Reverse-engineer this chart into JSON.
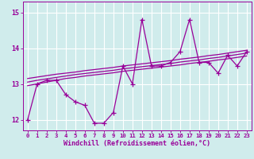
{
  "xlabel": "Windchill (Refroidissement éolien,°C)",
  "xlim": [
    -0.5,
    23.5
  ],
  "ylim": [
    11.7,
    15.3
  ],
  "yticks": [
    12,
    13,
    14,
    15
  ],
  "xticks": [
    0,
    1,
    2,
    3,
    4,
    5,
    6,
    7,
    8,
    9,
    10,
    11,
    12,
    13,
    14,
    15,
    16,
    17,
    18,
    19,
    20,
    21,
    22,
    23
  ],
  "bg_color": "#d0ecec",
  "grid_color": "#b0d8d8",
  "line_color": "#990099",
  "main_data": [
    12.0,
    13.0,
    13.1,
    13.1,
    12.7,
    12.5,
    12.4,
    11.9,
    11.9,
    12.2,
    13.5,
    13.0,
    14.8,
    13.5,
    13.5,
    13.6,
    13.9,
    14.8,
    13.6,
    13.6,
    13.3,
    13.8,
    13.5,
    13.9
  ],
  "trend1": [
    12.95,
    13.0,
    13.05,
    13.1,
    13.15,
    13.18,
    13.22,
    13.25,
    13.28,
    13.31,
    13.35,
    13.38,
    13.41,
    13.44,
    13.47,
    13.5,
    13.53,
    13.57,
    13.6,
    13.63,
    13.67,
    13.7,
    13.74,
    13.78
  ],
  "trend2": [
    13.05,
    13.1,
    13.14,
    13.18,
    13.22,
    13.26,
    13.29,
    13.32,
    13.35,
    13.38,
    13.42,
    13.45,
    13.48,
    13.51,
    13.54,
    13.57,
    13.61,
    13.64,
    13.67,
    13.71,
    13.74,
    13.78,
    13.82,
    13.86
  ],
  "trend3": [
    13.15,
    13.19,
    13.23,
    13.27,
    13.3,
    13.33,
    13.37,
    13.4,
    13.43,
    13.46,
    13.5,
    13.53,
    13.56,
    13.59,
    13.62,
    13.65,
    13.69,
    13.72,
    13.75,
    13.79,
    13.82,
    13.86,
    13.9,
    13.94
  ],
  "lw": 0.9,
  "marker": "+",
  "markersize": 4
}
